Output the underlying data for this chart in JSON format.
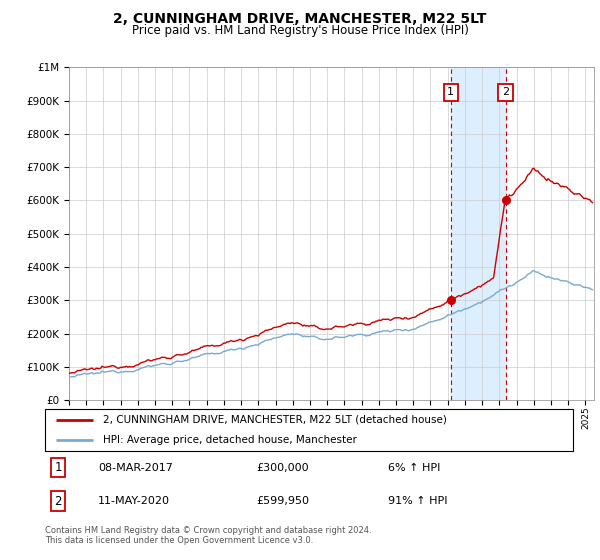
{
  "title": "2, CUNNINGHAM DRIVE, MANCHESTER, M22 5LT",
  "subtitle": "Price paid vs. HM Land Registry's House Price Index (HPI)",
  "legend_line1": "2, CUNNINGHAM DRIVE, MANCHESTER, M22 5LT (detached house)",
  "legend_line2": "HPI: Average price, detached house, Manchester",
  "sale1_date": "08-MAR-2017",
  "sale1_price": 300000,
  "sale1_year": 2017.18,
  "sale2_date": "11-MAY-2020",
  "sale2_price": 599950,
  "sale2_year": 2020.36,
  "sale1_pct": "6%",
  "sale2_pct": "91%",
  "footer": "Contains HM Land Registry data © Crown copyright and database right 2024.\nThis data is licensed under the Open Government Licence v3.0.",
  "hpi_color": "#7aaad0",
  "price_color": "#cc0000",
  "shade_color": "#ddeeff",
  "marker_color": "#cc0000",
  "y_max": 1000000,
  "x_min": 1995,
  "x_max": 2025.5
}
